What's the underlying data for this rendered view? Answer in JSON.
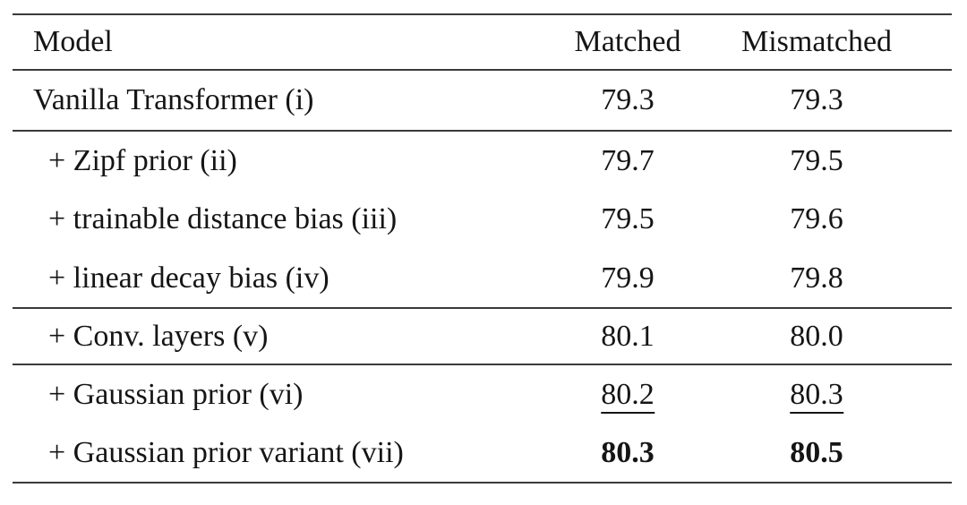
{
  "table": {
    "header": {
      "model": "Model",
      "matched": "Matched",
      "mismatched": "Mismatched"
    },
    "rows": [
      {
        "model": "Vanilla Transformer (i)",
        "matched": "79.3",
        "mismatched": "79.3",
        "indent": false,
        "emphasis": "none"
      },
      {
        "model": "+ Zipf prior (ii)",
        "matched": "79.7",
        "mismatched": "79.5",
        "indent": true,
        "emphasis": "none"
      },
      {
        "model": "+ trainable distance bias (iii)",
        "matched": "79.5",
        "mismatched": "79.6",
        "indent": true,
        "emphasis": "none"
      },
      {
        "model": "+ linear decay bias (iv)",
        "matched": "79.9",
        "mismatched": "79.8",
        "indent": true,
        "emphasis": "none"
      },
      {
        "model": "+ Conv. layers (v)",
        "matched": "80.1",
        "mismatched": "80.0",
        "indent": true,
        "emphasis": "none"
      },
      {
        "model": "+ Gaussian prior (vi)",
        "matched": "80.2",
        "mismatched": "80.3",
        "indent": true,
        "emphasis": "underline"
      },
      {
        "model": "+ Gaussian prior variant (vii)",
        "matched": "80.3",
        "mismatched": "80.5",
        "indent": true,
        "emphasis": "bold"
      }
    ],
    "colors": {
      "text": "#151515",
      "rule": "#3a3a3a",
      "background": "#ffffff"
    }
  }
}
